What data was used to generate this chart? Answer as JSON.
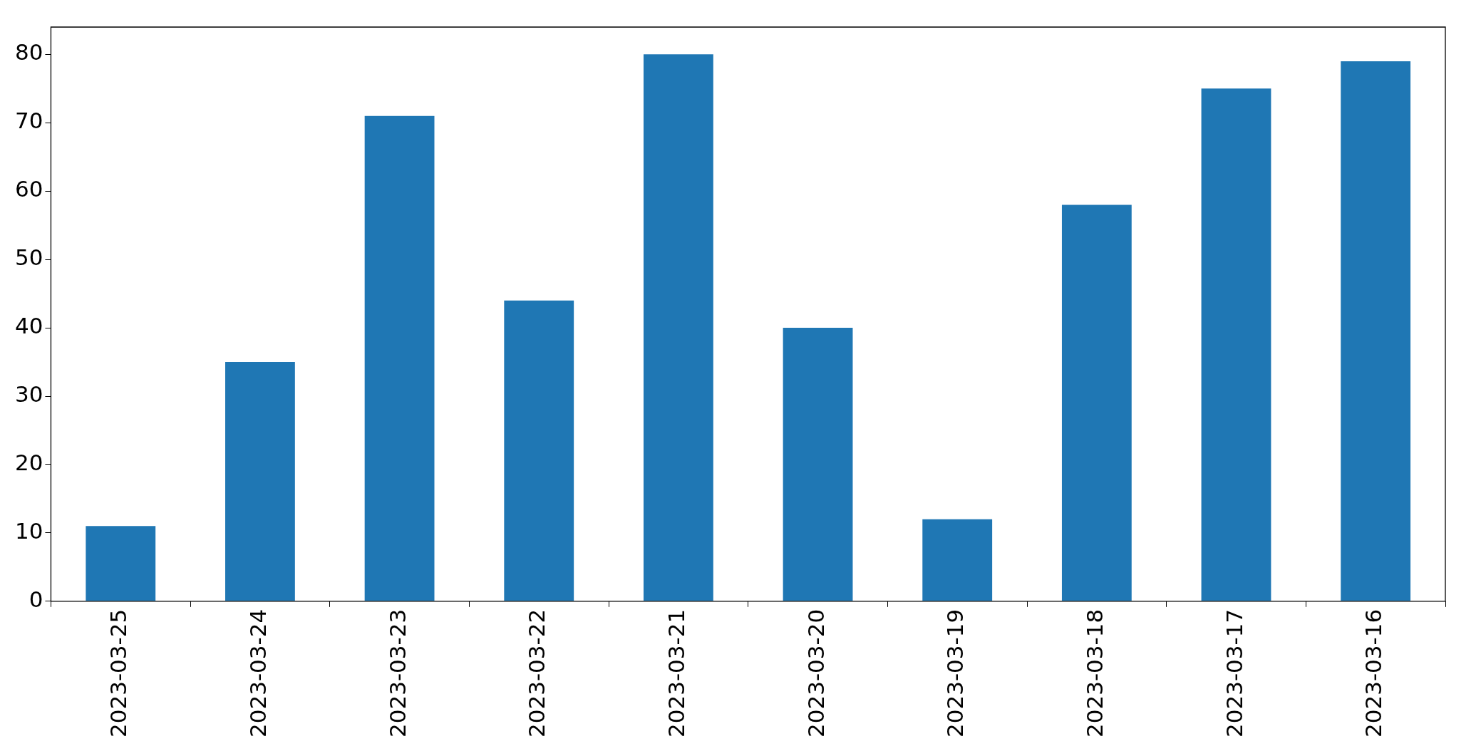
{
  "chart_data": {
    "type": "bar",
    "categories": [
      "2023-03-25",
      "2023-03-24",
      "2023-03-23",
      "2023-03-22",
      "2023-03-21",
      "2023-03-20",
      "2023-03-19",
      "2023-03-18",
      "2023-03-17",
      "2023-03-16"
    ],
    "values": [
      11,
      35,
      71,
      44,
      80,
      40,
      12,
      58,
      75,
      79
    ],
    "color": "#1f77b4",
    "ylim": [
      0,
      84
    ],
    "yticks": [
      0,
      10,
      20,
      30,
      40,
      50,
      60,
      70,
      80
    ],
    "grid": false,
    "legend": false
  }
}
